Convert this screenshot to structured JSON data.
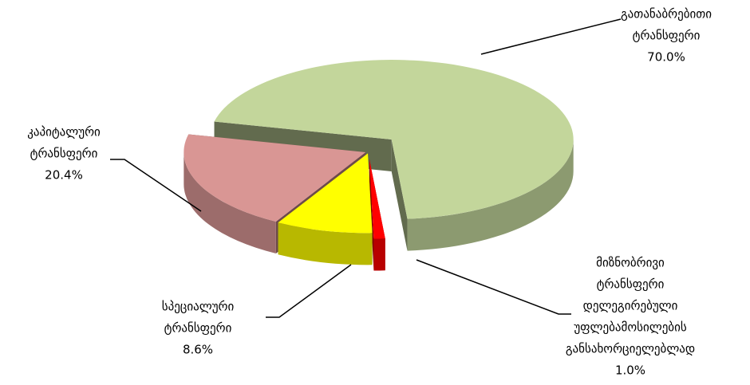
{
  "chart_data": {
    "type": "pie",
    "categories": [
      [
        "გათანაბრებითი",
        "ტრანსფერი"
      ],
      [
        "კაპიტალური",
        "ტრანსფერი"
      ],
      [
        "სპეციალური",
        "ტრანსფერი"
      ],
      [
        "მიზნობრივი",
        "ტრანსფერი",
        "დელეგირებული",
        "უფლებამოსილების",
        "განსახორციელებლად"
      ]
    ],
    "values": [
      70.0,
      20.4,
      8.6,
      1.0
    ],
    "value_labels": [
      "70.0%",
      "20.4%",
      "8.6%",
      "1.0%"
    ],
    "colors": [
      "#c3d69b",
      "#d99694",
      "#ffff00",
      "#ff0000"
    ],
    "data_order": [
      0,
      3,
      2,
      1
    ]
  }
}
